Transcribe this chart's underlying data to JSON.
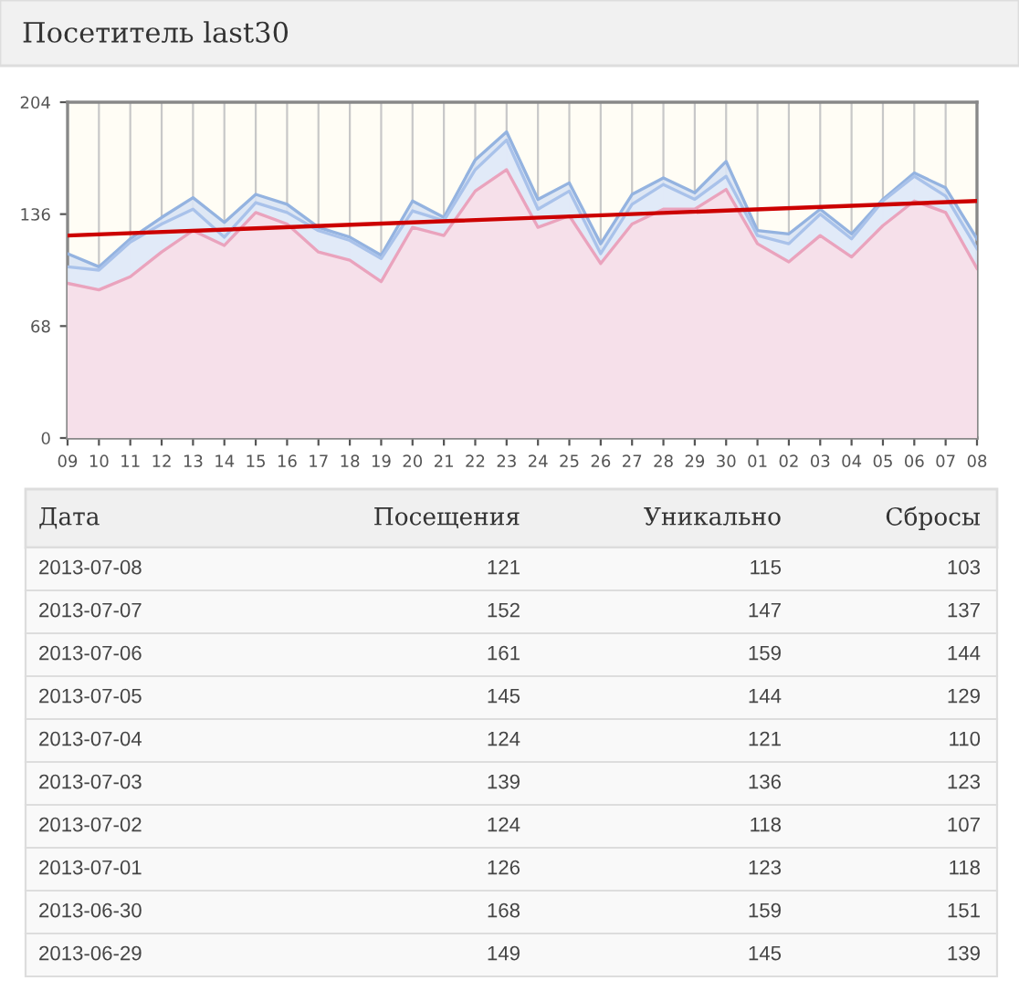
{
  "chart_data": [
    {
      "type": "area",
      "title": "Посетитель last30",
      "x": [
        "2013-06-09",
        "2013-06-10",
        "2013-06-11",
        "2013-06-12",
        "2013-06-13",
        "2013-06-14",
        "2013-06-15",
        "2013-06-16",
        "2013-06-17",
        "2013-06-18",
        "2013-06-19",
        "2013-06-20",
        "2013-06-21",
        "2013-06-22",
        "2013-06-23",
        "2013-06-24",
        "2013-06-25",
        "2013-06-26",
        "2013-06-27",
        "2013-06-28",
        "2013-06-29",
        "2013-06-30",
        "2013-07-01",
        "2013-07-02",
        "2013-07-03",
        "2013-07-04",
        "2013-07-05",
        "2013-07-06",
        "2013-07-07",
        "2013-07-08"
      ],
      "xlim": [
        "2013-06-09",
        "2013-07-08"
      ],
      "xticks": [
        {
          "value": "2013-06-09",
          "label": "09"
        },
        {
          "value": "2013-06-10",
          "label": "10"
        },
        {
          "value": "2013-06-11",
          "label": "11"
        },
        {
          "value": "2013-06-12",
          "label": "12"
        },
        {
          "value": "2013-06-13",
          "label": "13"
        },
        {
          "value": "2013-06-14",
          "label": "14"
        },
        {
          "value": "2013-06-15",
          "label": "15"
        },
        {
          "value": "2013-06-16",
          "label": "16"
        },
        {
          "value": "2013-06-17",
          "label": "17"
        },
        {
          "value": "2013-06-18",
          "label": "18"
        },
        {
          "value": "2013-06-19",
          "label": "19"
        },
        {
          "value": "2013-06-20",
          "label": "20"
        },
        {
          "value": "2013-06-21",
          "label": "21"
        },
        {
          "value": "2013-06-22",
          "label": "22"
        },
        {
          "value": "2013-06-23",
          "label": "23"
        },
        {
          "value": "2013-06-24",
          "label": "24"
        },
        {
          "value": "2013-06-25",
          "label": "25"
        },
        {
          "value": "2013-06-26",
          "label": "26"
        },
        {
          "value": "2013-06-27",
          "label": "27"
        },
        {
          "value": "2013-06-28",
          "label": "28"
        },
        {
          "value": "2013-06-29",
          "label": "29"
        },
        {
          "value": "2013-06-30",
          "label": "30"
        },
        {
          "value": "2013-07-01",
          "label": "01"
        },
        {
          "value": "2013-07-02",
          "label": "02"
        },
        {
          "value": "2013-07-03",
          "label": "03"
        },
        {
          "value": "2013-07-04",
          "label": "04"
        },
        {
          "value": "2013-07-05",
          "label": "05"
        },
        {
          "value": "2013-07-06",
          "label": "06"
        },
        {
          "value": "2013-07-07",
          "label": "07"
        },
        {
          "value": "2013-07-08",
          "label": "08"
        }
      ],
      "ylim": [
        0,
        204
      ],
      "yticks": [
        0,
        68,
        136,
        204
      ],
      "grid": "x",
      "series": [
        {
          "color": "#94b3e0",
          "values": [
            112,
            104,
            121,
            134,
            146,
            131,
            148,
            142,
            128,
            122,
            111,
            144,
            134,
            169,
            186,
            145,
            155,
            118,
            148,
            158,
            149,
            168,
            126,
            124,
            139,
            124,
            145,
            161,
            152,
            121
          ]
        },
        {
          "color": "#a9c2ea",
          "values": [
            104,
            102,
            119,
            130,
            139,
            122,
            143,
            137,
            126,
            120,
            109,
            138,
            132,
            163,
            181,
            139,
            150,
            112,
            142,
            154,
            145,
            159,
            123,
            118,
            136,
            121,
            144,
            159,
            147,
            115
          ]
        },
        {
          "color": "#eaa3bd",
          "values": [
            94,
            90,
            98,
            113,
            126,
            117,
            137,
            130,
            113,
            108,
            95,
            128,
            123,
            150,
            163,
            128,
            135,
            106,
            130,
            139,
            139,
            151,
            118,
            107,
            123,
            110,
            129,
            144,
            137,
            103
          ]
        },
        {
          "type": "line",
          "color": "#cc0000",
          "x": [
            "2013-06-09",
            "2013-07-08"
          ],
          "values": [
            123,
            144
          ]
        }
      ]
    },
    {
      "type": "other",
      "annotations": [
        "Дата",
        "Посещения",
        "Уникально",
        "Сбросы",
        "2013-07-08",
        "121",
        "115",
        "103",
        "2013-07-07",
        "152",
        "147",
        "137",
        "2013-07-06",
        "161",
        "159",
        "144",
        "2013-07-05",
        "145",
        "144",
        "129",
        "2013-07-04",
        "124",
        "121",
        "110",
        "2013-07-03",
        "139",
        "136",
        "123",
        "2013-07-02",
        "124",
        "118",
        "107",
        "2013-07-01",
        "126",
        "123",
        "118",
        "2013-06-30",
        "168",
        "159",
        "151",
        "2013-06-29",
        "149",
        "145",
        "139"
      ]
    }
  ]
}
